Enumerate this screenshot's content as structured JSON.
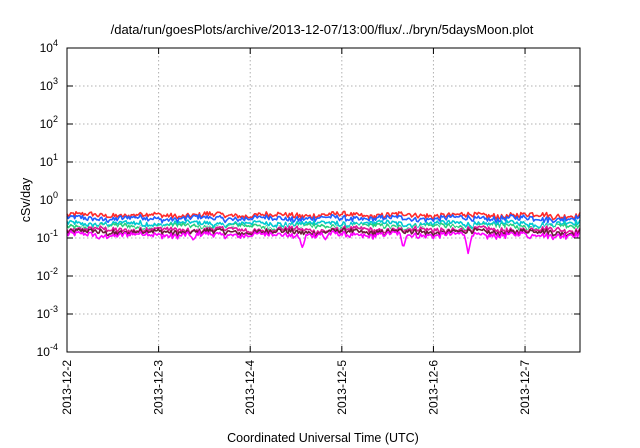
{
  "chart_data": {
    "type": "line",
    "title": "/data/run/goesPlots/archive/2013-12-07/13:00/flux/../bryn/5daysMoon.plot",
    "xlabel": "Coordinated Universal Time (UTC)",
    "ylabel": "cSv/day",
    "yscale": "log",
    "ylim": [
      0.0001,
      10000
    ],
    "xlim": [
      0,
      5.6
    ],
    "x_unit": "days since 2013-12-2 00:00 UTC",
    "grid": true,
    "x_ticks": [
      {
        "x": 0,
        "label": "2013-12-2"
      },
      {
        "x": 1,
        "label": "2013-12-3"
      },
      {
        "x": 2,
        "label": "2013-12-4"
      },
      {
        "x": 3,
        "label": "2013-12-5"
      },
      {
        "x": 4,
        "label": "2013-12-6"
      },
      {
        "x": 5,
        "label": "2013-12-7"
      }
    ],
    "y_ticks": [
      {
        "value": 0.0001,
        "base": "10",
        "exp": "-4"
      },
      {
        "value": 0.001,
        "base": "10",
        "exp": "-3"
      },
      {
        "value": 0.01,
        "base": "10",
        "exp": "-2"
      },
      {
        "value": 0.1,
        "base": "10",
        "exp": "-1"
      },
      {
        "value": 1,
        "base": "10",
        "exp": "0"
      },
      {
        "value": 10,
        "base": "10",
        "exp": "1"
      },
      {
        "value": 100,
        "base": "10",
        "exp": "2"
      },
      {
        "value": 1000,
        "base": "10",
        "exp": "3"
      },
      {
        "value": 10000,
        "base": "10",
        "exp": "4"
      }
    ],
    "n_points": 400,
    "series": [
      {
        "color": "#ff2a2a",
        "level": 0.4,
        "dips": []
      },
      {
        "color": "#1f5fff",
        "level": 0.33,
        "dips": []
      },
      {
        "color": "#00c8d2",
        "level": 0.24,
        "dips": []
      },
      {
        "color": "#26d07c",
        "level": 0.2,
        "dips": []
      },
      {
        "color": "#ffffff",
        "level": 0.185,
        "dips": []
      },
      {
        "color": "#e0139a",
        "level": 0.165,
        "dips": []
      },
      {
        "color": "#6b1c3a",
        "level": 0.145,
        "dips": []
      },
      {
        "color": "#ff00ff",
        "level": 0.122,
        "dips": [
          {
            "x": 1.38,
            "value": 0.085
          },
          {
            "x": 2.57,
            "value": 0.055
          },
          {
            "x": 3.67,
            "value": 0.055
          },
          {
            "x": 4.38,
            "value": 0.038
          },
          {
            "x": 0.35,
            "value": 0.095
          },
          {
            "x": 2.82,
            "value": 0.09
          },
          {
            "x": 5.05,
            "value": 0.095
          }
        ]
      }
    ]
  }
}
